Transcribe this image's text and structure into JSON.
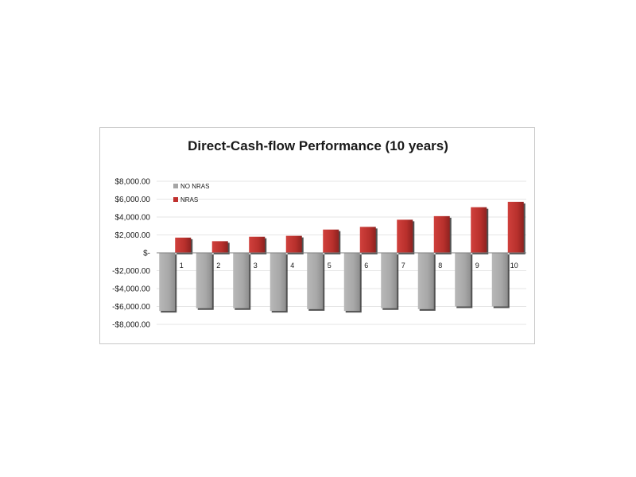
{
  "chart_data": {
    "type": "bar",
    "title": "Direct-Cash-flow Performance (10 years)",
    "xlabel": "",
    "ylabel": "",
    "categories": [
      "1",
      "2",
      "3",
      "4",
      "5",
      "6",
      "7",
      "8",
      "9",
      "10"
    ],
    "series": [
      {
        "name": "NO NRAS",
        "color": "#a6a6a6",
        "values": [
          -6500,
          -6200,
          -6200,
          -6500,
          -6300,
          -6500,
          -6200,
          -6300,
          -6000,
          -6000
        ]
      },
      {
        "name": "NRAS",
        "color": "#c0302e",
        "values": [
          1700,
          1300,
          1800,
          1900,
          2600,
          2900,
          3700,
          4100,
          5100,
          5700
        ]
      }
    ],
    "ylim": [
      -8000,
      8000
    ],
    "ytick_values": [
      8000,
      6000,
      4000,
      2000,
      0,
      -2000,
      -4000,
      -6000,
      -8000
    ],
    "ytick_labels": [
      "$8,000.00",
      "$6,000.00",
      "$4,000.00",
      "$2,000.00",
      "$-",
      "-$2,000.00",
      "-$4,000.00",
      "-$6,000.00",
      "-$8,000.00"
    ],
    "grid": true,
    "legend_position": "top-left"
  }
}
